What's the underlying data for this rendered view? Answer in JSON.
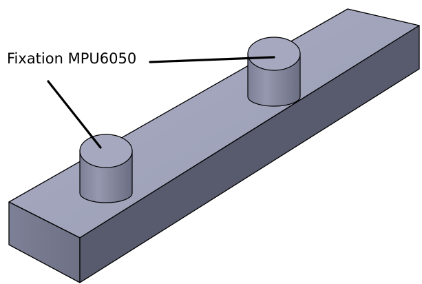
{
  "annotation": {
    "label": "Fixation MPU6050"
  },
  "colors": {
    "background": "#ffffff",
    "top_face": "#a2a5bc",
    "front_face": "#73768b",
    "right_face": "#575a6d",
    "cylinder_top": "#a7aac1",
    "cylinder_side_light": "#9598ae",
    "cylinder_side_dark": "#6b6e83",
    "edge": "#000000"
  },
  "parts": {
    "cylinder_count": 2
  }
}
